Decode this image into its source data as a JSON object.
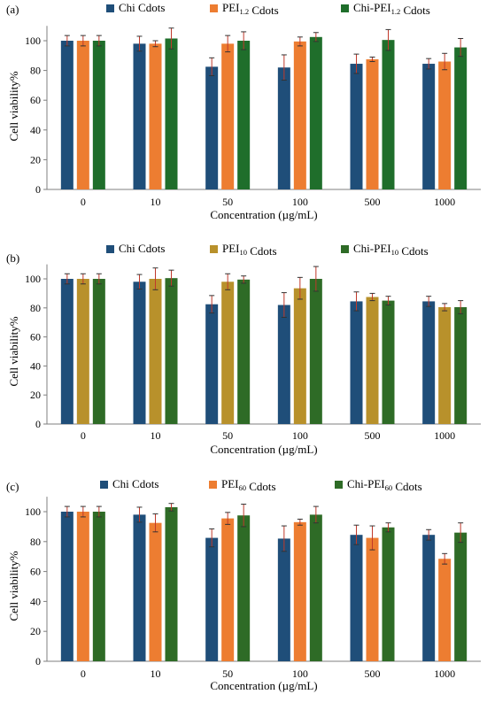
{
  "chart_data": [
    {
      "type": "bar",
      "panel_label": "(a)",
      "categories": [
        "0",
        "10",
        "50",
        "100",
        "500",
        "1000"
      ],
      "xlabel": "Concentration (µg/mL)",
      "ylabel": "Cell viability%",
      "ylim": [
        0,
        110
      ],
      "yticks": [
        0,
        20,
        40,
        60,
        80,
        100
      ],
      "legend_position": "top",
      "series": [
        {
          "name": "Chi Cdots",
          "legend_parts": [
            {
              "t": "Chi Cdots"
            }
          ],
          "color": "#1f4e79",
          "values": [
            100,
            98,
            82.5,
            82,
            84.5,
            84.5
          ],
          "errors": [
            3.5,
            5,
            6,
            8.5,
            6.5,
            3.5
          ]
        },
        {
          "name": "PEI1.2 Cdots",
          "legend_parts": [
            {
              "t": "PEI"
            },
            {
              "t": "1.2",
              "sub": true
            },
            {
              "t": " Cdots"
            }
          ],
          "color": "#ed7d31",
          "values": [
            100,
            98,
            98,
            99.5,
            87.5,
            86
          ],
          "errors": [
            3.5,
            2,
            5.5,
            3,
            1.5,
            5.5
          ]
        },
        {
          "name": "Chi-PEI1.2 Cdots",
          "legend_parts": [
            {
              "t": "Chi-PEI"
            },
            {
              "t": "1.2",
              "sub": true
            },
            {
              "t": " Cdots"
            }
          ],
          "color": "#1f6e2b",
          "values": [
            100,
            101.5,
            100,
            102.5,
            100.5,
            95.5
          ],
          "errors": [
            3.5,
            7,
            6,
            3,
            7,
            6
          ]
        }
      ]
    },
    {
      "type": "bar",
      "panel_label": "(b)",
      "categories": [
        "0",
        "10",
        "50",
        "100",
        "500",
        "1000"
      ],
      "xlabel": "Concentration (µg/mL)",
      "ylabel": "Cell viability%",
      "ylim": [
        0,
        110
      ],
      "yticks": [
        0,
        20,
        40,
        60,
        80,
        100
      ],
      "legend_position": "top",
      "series": [
        {
          "name": "Chi Cdots",
          "legend_parts": [
            {
              "t": "Chi  Cdots"
            }
          ],
          "color": "#1f4e79",
          "values": [
            100,
            98,
            82.5,
            82,
            84.5,
            84.5
          ],
          "errors": [
            3.5,
            5,
            6,
            8.5,
            6.5,
            3.5
          ]
        },
        {
          "name": "PEI10 Cdots",
          "legend_parts": [
            {
              "t": "PEI"
            },
            {
              "t": "10",
              "sub": true
            },
            {
              "t": " Cdots"
            }
          ],
          "color": "#b8912b",
          "values": [
            100,
            100,
            98,
            93.5,
            87.5,
            80.5
          ],
          "errors": [
            3.5,
            7.5,
            5.5,
            7.5,
            2.5,
            2.5
          ]
        },
        {
          "name": "Chi-PEI10 Cdots",
          "legend_parts": [
            {
              "t": "Chi-PEI"
            },
            {
              "t": "10",
              "sub": true
            },
            {
              "t": " Cdots"
            }
          ],
          "color": "#2e6b26",
          "values": [
            100,
            100.5,
            99.5,
            100,
            85,
            80.5
          ],
          "errors": [
            3.5,
            5.5,
            2.5,
            8.5,
            3,
            4.5
          ]
        }
      ]
    },
    {
      "type": "bar",
      "panel_label": "(c)",
      "categories": [
        "0",
        "10",
        "50",
        "100",
        "500",
        "1000"
      ],
      "xlabel": "Concentration (µg/mL)",
      "ylabel": "Cell viability%",
      "ylim": [
        0,
        110
      ],
      "yticks": [
        0,
        20,
        40,
        60,
        80,
        100
      ],
      "legend_position": "top",
      "series": [
        {
          "name": "Chi Cdots",
          "legend_parts": [
            {
              "t": "Chi Cdots"
            }
          ],
          "color": "#1f4e79",
          "values": [
            100,
            98,
            82.5,
            82,
            84.5,
            84.5
          ],
          "errors": [
            3.5,
            5,
            6,
            8.5,
            6.5,
            3.5
          ]
        },
        {
          "name": "PEI60 Cdots",
          "legend_parts": [
            {
              "t": "PEI"
            },
            {
              "t": "60",
              "sub": true
            },
            {
              "t": " Cdots"
            }
          ],
          "color": "#ed7d31",
          "values": [
            100,
            92.5,
            95.5,
            93,
            82.5,
            68.5
          ],
          "errors": [
            3.5,
            6,
            4,
            2,
            8,
            3.5
          ]
        },
        {
          "name": "Chi-PEI60 Cdots",
          "legend_parts": [
            {
              "t": "Chi-PEI"
            },
            {
              "t": "60",
              "sub": true
            },
            {
              "t": " Cdots"
            }
          ],
          "color": "#2e6b26",
          "values": [
            100,
            103,
            97.5,
            98,
            89.5,
            86
          ],
          "errors": [
            3.5,
            2.5,
            7.5,
            5.5,
            3,
            6.5
          ]
        }
      ]
    }
  ]
}
